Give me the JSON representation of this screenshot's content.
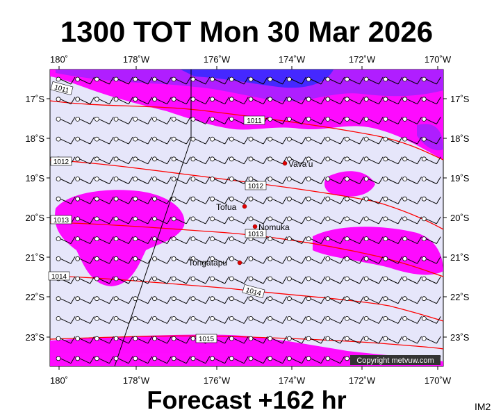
{
  "header": {
    "title": "1300 TOT Mon 30 Mar 2026"
  },
  "x_axis": {
    "labels": [
      "180˚",
      "178˚W",
      "176˚W",
      "174˚W",
      "172˚W",
      "170˚W"
    ]
  },
  "y_axis": {
    "labels": [
      "17˚S",
      "18˚S",
      "19˚S",
      "20˚S",
      "21˚S",
      "22˚S",
      "23˚S"
    ]
  },
  "places": [
    {
      "label": "Vava'u"
    },
    {
      "label": "Tofua"
    },
    {
      "label": "Nomuka"
    },
    {
      "label": "Tongatapu"
    }
  ],
  "isobars": [
    {
      "label": "1011"
    },
    {
      "label": "1011"
    },
    {
      "label": "1012"
    },
    {
      "label": "1012"
    },
    {
      "label": "1013"
    },
    {
      "label": "1013"
    },
    {
      "label": "1014"
    },
    {
      "label": "1014"
    },
    {
      "label": "1015"
    }
  ],
  "copyright": "Copyright metvuw.com",
  "footer": {
    "forecast": "Forecast +162 hr",
    "code": "IM2"
  }
}
